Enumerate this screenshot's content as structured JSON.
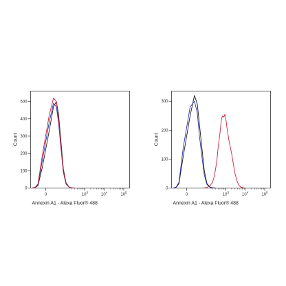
{
  "chart_data": [
    {
      "type": "line",
      "xlabel": "Annexin A1 - Alexa Fluor® 488",
      "ylabel": "Count",
      "x_scale": "biexponential",
      "xlim": [
        -50,
        200000
      ],
      "ylim": [
        0,
        560
      ],
      "x_ticks": [
        {
          "value": 0,
          "label": "0"
        },
        {
          "value": 1000,
          "label": "10",
          "exp": "3"
        },
        {
          "value": 10000,
          "label": "10",
          "exp": "4"
        },
        {
          "value": 100000,
          "label": "10",
          "exp": "5"
        }
      ],
      "y_ticks": [
        0,
        100,
        200,
        300,
        400,
        500
      ],
      "grid": false,
      "series": [
        {
          "color": "#1a1a1a",
          "x": [
            -40,
            -25,
            -15,
            -5,
            5,
            15,
            25,
            35,
            50,
            70,
            100,
            150,
            200,
            300
          ],
          "y": [
            0,
            2,
            15,
            120,
            330,
            470,
            500,
            430,
            270,
            110,
            30,
            5,
            1,
            0
          ]
        },
        {
          "color": "#2b2f9e",
          "x": [
            -40,
            -25,
            -15,
            -5,
            5,
            15,
            25,
            35,
            50,
            70,
            100,
            150,
            200,
            300
          ],
          "y": [
            0,
            3,
            20,
            160,
            380,
            490,
            470,
            380,
            230,
            90,
            22,
            4,
            1,
            0
          ]
        },
        {
          "color": "#d0203a",
          "x": [
            -40,
            -25,
            -15,
            -5,
            5,
            15,
            25,
            35,
            50,
            70,
            100,
            150,
            200,
            300
          ],
          "y": [
            0,
            4,
            25,
            190,
            420,
            520,
            500,
            400,
            240,
            95,
            25,
            5,
            1,
            0
          ]
        }
      ]
    },
    {
      "type": "line",
      "xlabel": "Annexin A1 - Alexa Fluor® 488",
      "ylabel": "Count",
      "x_scale": "biexponential",
      "xlim": [
        -50,
        200000
      ],
      "ylim": [
        0,
        335
      ],
      "x_ticks": [
        {
          "value": 0,
          "label": "0"
        },
        {
          "value": 1000,
          "label": "10",
          "exp": "3"
        },
        {
          "value": 10000,
          "label": "10",
          "exp": "4"
        },
        {
          "value": 100000,
          "label": "10",
          "exp": "5"
        }
      ],
      "y_ticks": [
        0,
        100,
        200,
        300
      ],
      "grid": false,
      "series": [
        {
          "color": "#1a1a1a",
          "x": [
            -40,
            -25,
            -15,
            -5,
            5,
            15,
            25,
            35,
            50,
            70,
            100,
            150,
            200,
            300
          ],
          "y": [
            0,
            2,
            15,
            110,
            250,
            320,
            290,
            220,
            140,
            60,
            15,
            3,
            1,
            0
          ]
        },
        {
          "color": "#2b2f9e",
          "x": [
            -40,
            -25,
            -15,
            -5,
            5,
            15,
            25,
            35,
            50,
            70,
            100,
            150,
            200,
            300
          ],
          "y": [
            0,
            3,
            20,
            140,
            280,
            300,
            260,
            180,
            110,
            45,
            12,
            2,
            1,
            0
          ]
        },
        {
          "color": "#d0203a",
          "x": [
            60,
            100,
            150,
            200,
            250,
            300,
            350,
            400,
            500,
            600,
            700,
            800,
            900,
            1000,
            1200,
            1500,
            2000,
            2500,
            3000,
            4000,
            5000,
            6000,
            8000,
            10000
          ],
          "y": [
            0,
            2,
            8,
            20,
            40,
            70,
            100,
            140,
            190,
            240,
            250,
            245,
            255,
            240,
            200,
            160,
            120,
            80,
            50,
            20,
            8,
            3,
            1,
            0
          ]
        }
      ]
    }
  ]
}
